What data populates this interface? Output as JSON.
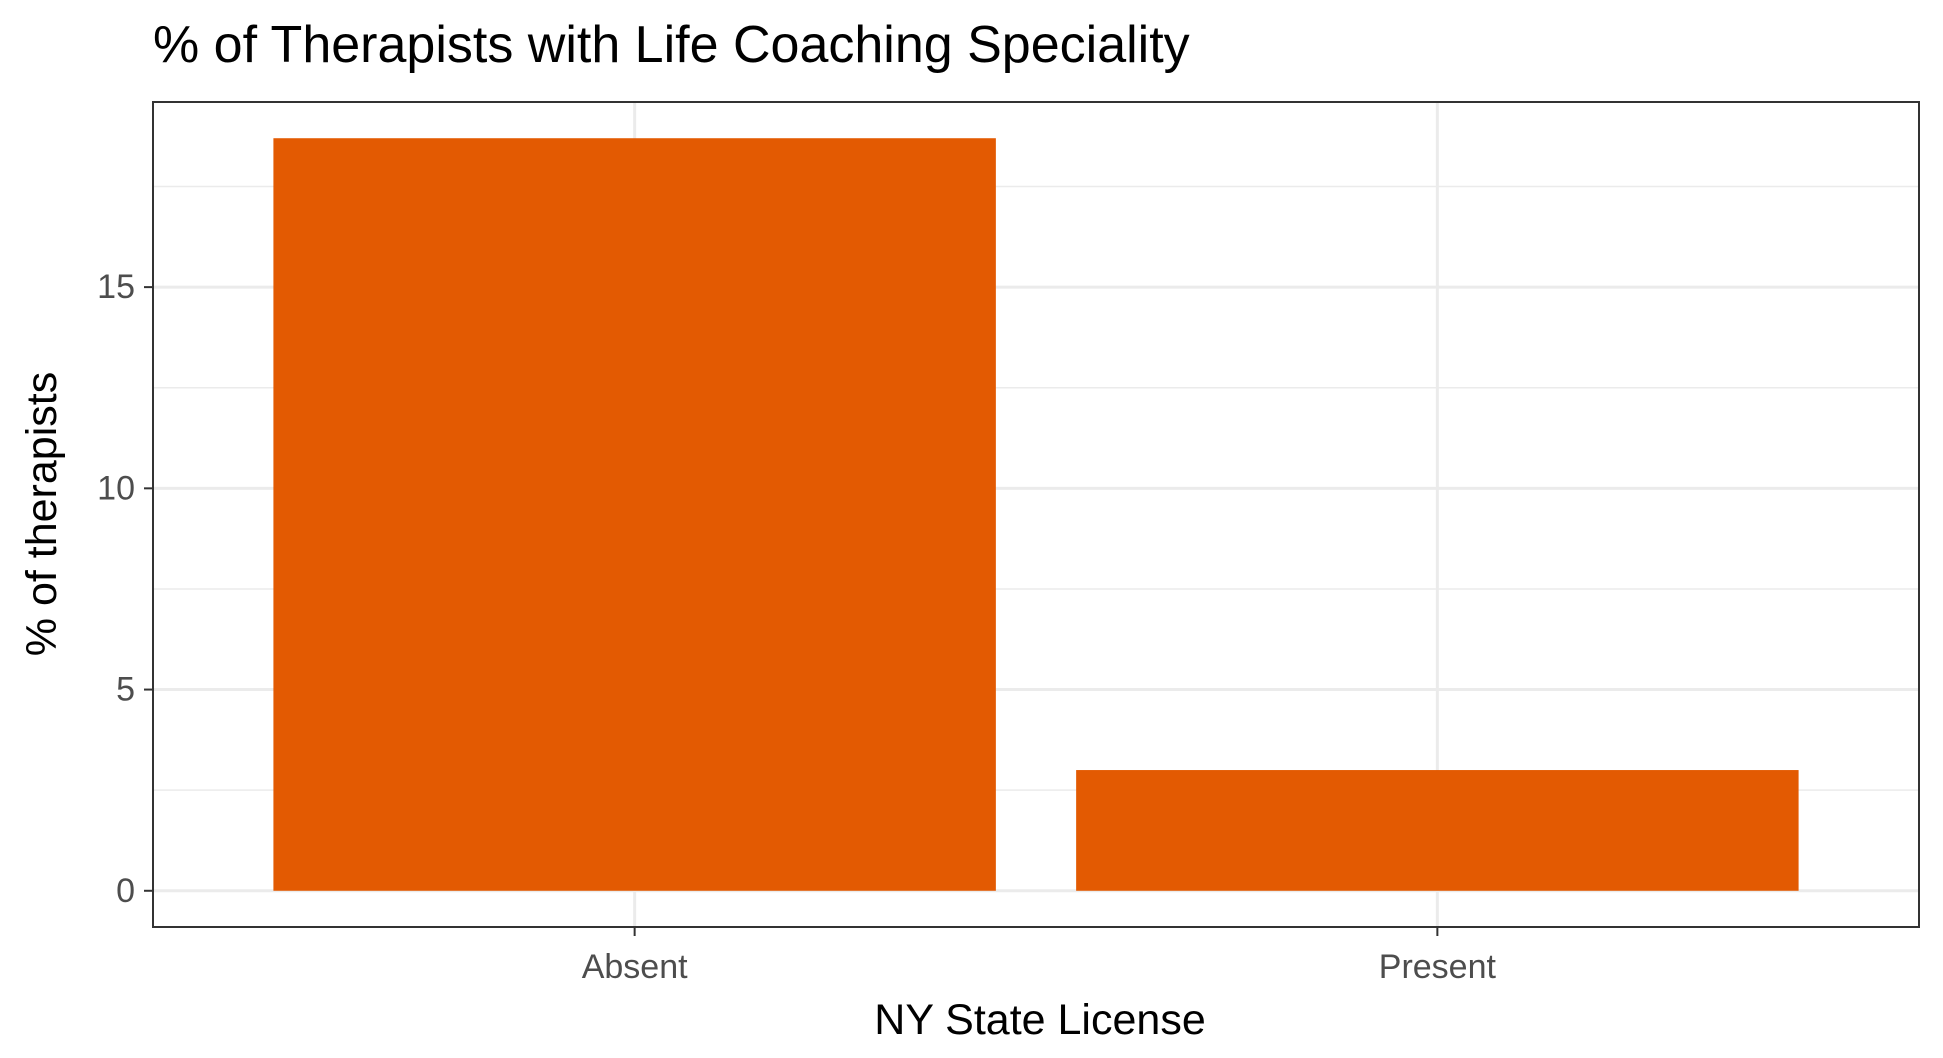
{
  "chart_data": {
    "type": "bar",
    "title": "% of Therapists with Life Coaching Speciality",
    "xlabel": "NY State License",
    "ylabel": "% of therapists",
    "categories": [
      "Absent",
      "Present"
    ],
    "values": [
      18.7,
      3.0
    ],
    "ylim": [
      -0.9,
      19.6
    ],
    "yticks": [
      0,
      5,
      10,
      15
    ],
    "ytick_labels": [
      "0",
      "5",
      "10",
      "15"
    ],
    "bar_color": "#E35A02",
    "grid": true,
    "legend": "none"
  }
}
